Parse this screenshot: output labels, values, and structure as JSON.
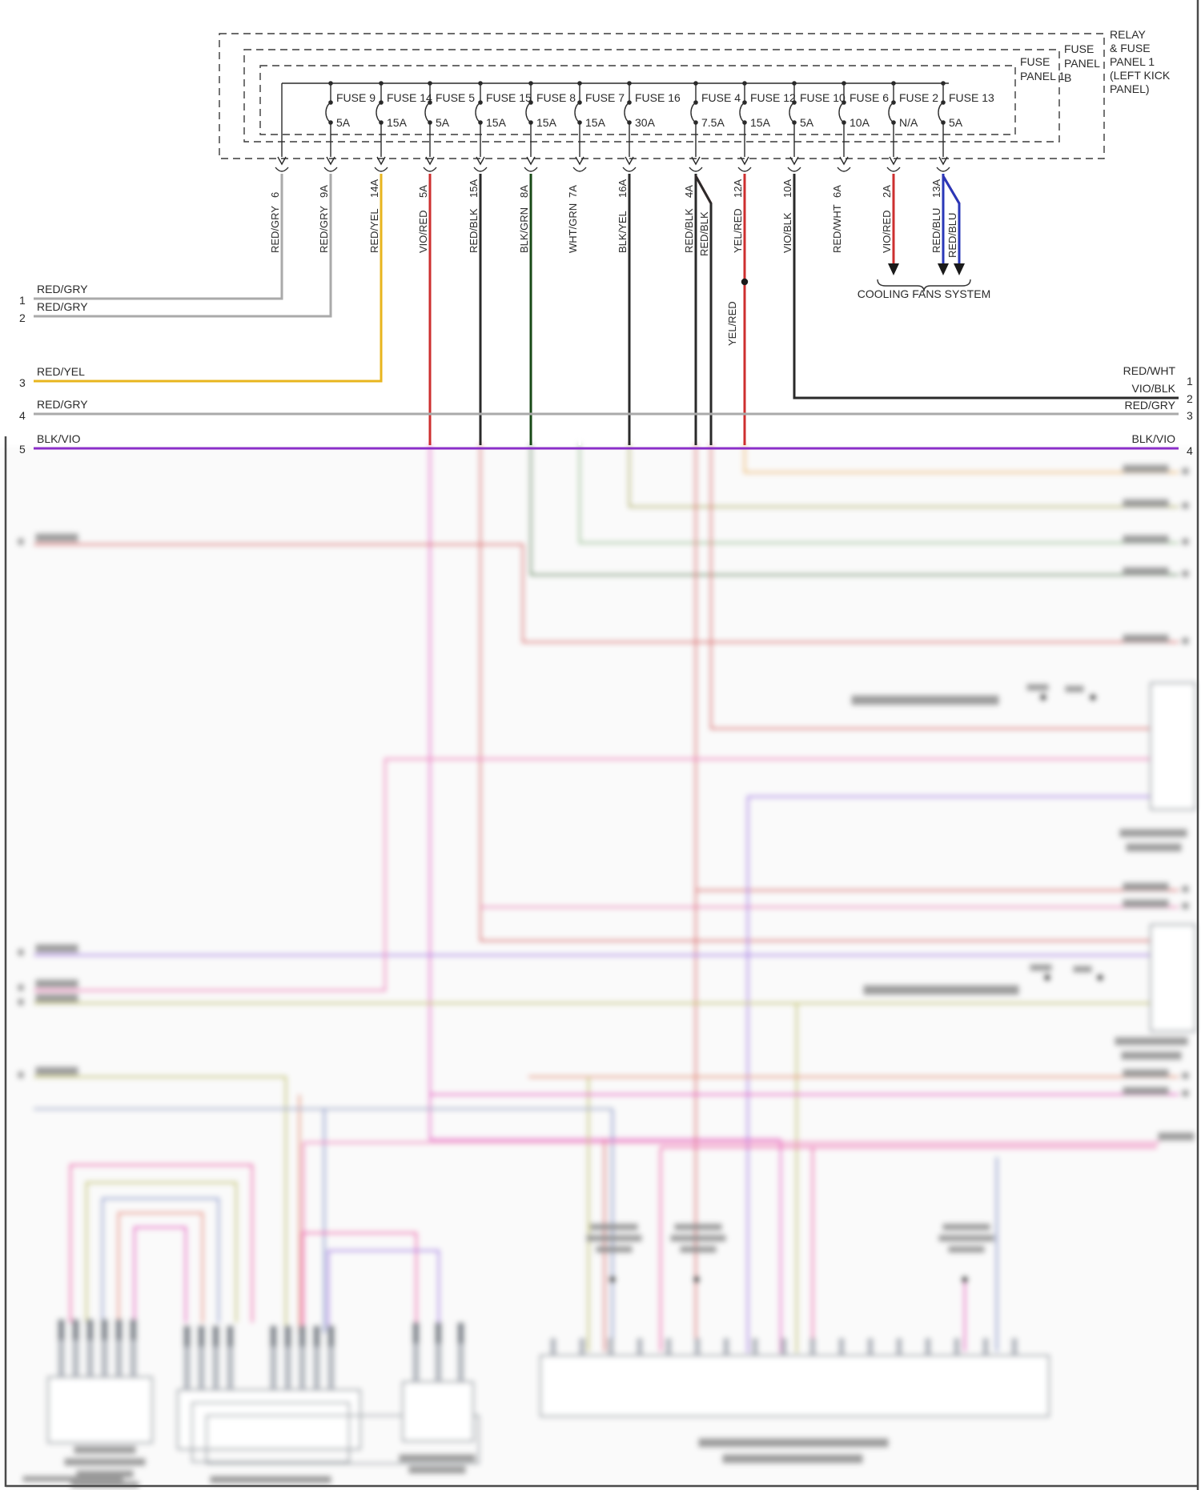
{
  "panels": {
    "relay": [
      "RELAY",
      "& FUSE",
      "PANEL 1",
      "(LEFT KICK",
      "PANEL)"
    ],
    "panel1": [
      "FUSE",
      "PANEL 1"
    ],
    "panelb": [
      "FUSE",
      "PANEL",
      "B"
    ]
  },
  "fuses": [
    {
      "name": "FUSE 9",
      "amp": "5A"
    },
    {
      "name": "FUSE 14",
      "amp": "15A"
    },
    {
      "name": "FUSE 5",
      "amp": "5A"
    },
    {
      "name": "FUSE 15",
      "amp": "15A"
    },
    {
      "name": "FUSE 8",
      "amp": "15A"
    },
    {
      "name": "FUSE 7",
      "amp": "15A"
    },
    {
      "name": "FUSE 16",
      "amp": "30A"
    },
    {
      "name": "FUSE 4",
      "amp": "7.5A"
    },
    {
      "name": "FUSE 12",
      "amp": "15A"
    },
    {
      "name": "FUSE 10",
      "amp": "5A"
    },
    {
      "name": "FUSE 6",
      "amp": "10A"
    },
    {
      "name": "FUSE 2",
      "amp": "N/A"
    },
    {
      "name": "FUSE 13",
      "amp": "5A"
    }
  ],
  "pins": [
    {
      "id": "6",
      "color": "RED/GRY"
    },
    {
      "id": "9A",
      "color": "RED/GRY"
    },
    {
      "id": "14A",
      "color": "RED/YEL"
    },
    {
      "id": "5A",
      "color": "VIO/RED"
    },
    {
      "id": "15A",
      "color": "RED/BLK"
    },
    {
      "id": "8A",
      "color": "BLK/GRN"
    },
    {
      "id": "7A",
      "color": "WHT/GRN"
    },
    {
      "id": "16A",
      "color": "BLK/YEL"
    },
    {
      "id": "4A",
      "color": "RED/BLK"
    },
    {
      "id": "12A",
      "color": "YEL/RED"
    },
    {
      "id": "10A",
      "color": "VIO/BLK"
    },
    {
      "id": "6A",
      "color": "RED/WHT"
    },
    {
      "id": "2A",
      "color": "VIO/RED"
    },
    {
      "id": "13A",
      "color": "RED/BLU"
    }
  ],
  "branch_labels": {
    "fuse4": "RED/BLK",
    "fuse13": "RED/BLU"
  },
  "left_rows": [
    {
      "num": "1",
      "label": "RED/GRY"
    },
    {
      "num": "2",
      "label": "RED/GRY"
    },
    {
      "num": "3",
      "label": "RED/YEL"
    },
    {
      "num": "4",
      "label": "RED/GRY"
    },
    {
      "num": "5",
      "label": "BLK/VIO"
    }
  ],
  "right_rows": [
    {
      "label": "RED/WHT",
      "num": "1"
    },
    {
      "label": "VIO/BLK",
      "num": "2"
    },
    {
      "label": "RED/GRY",
      "num": "3"
    },
    {
      "label": "BLK/VIO",
      "num": "4"
    }
  ],
  "annotations": {
    "cooling": "COOLING FANS SYSTEM",
    "junction": "YEL/RED"
  },
  "colors": {
    "red": "#cd2f2f",
    "gry": "#aaaaaa",
    "blk": "#2a2a2a",
    "yel": "#e8b51e",
    "vio_red": "#e420c6",
    "vio_blk": "#a428c8",
    "red_blu": "#a8175c",
    "blu": "#2a38b8",
    "yel_red": "#efc41a",
    "grn_dark": "#2f6d2c",
    "grn": "#194a17",
    "wht_grn": "#7cab72",
    "wht": "#ffffff",
    "blk_yel": "#98981e",
    "blk_vio": "#8b2fc9"
  }
}
